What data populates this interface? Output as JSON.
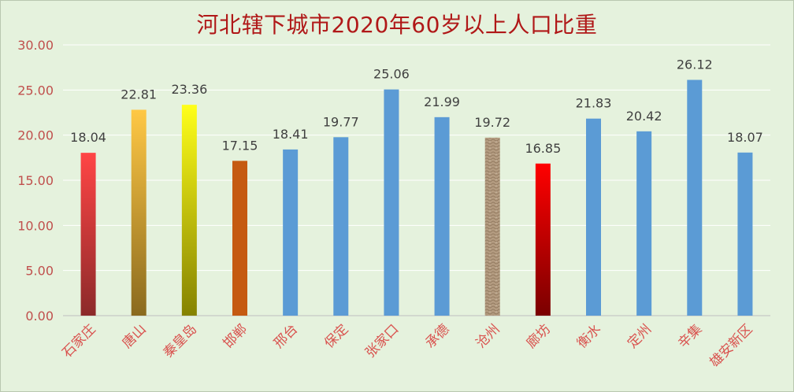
{
  "chart_data": {
    "type": "bar",
    "title": "河北辖下城市2020年60岁以上人口比重",
    "xlabel": "",
    "ylabel": "",
    "ylim": [
      0,
      30
    ],
    "yticks": [
      "0.00",
      "5.00",
      "10.00",
      "15.00",
      "20.00",
      "25.00",
      "30.00"
    ],
    "grid": "horizontal",
    "legend": "none",
    "categories": [
      "石家庄",
      "唐山",
      "秦皇岛",
      "邯郸",
      "邢台",
      "保定",
      "张家口",
      "承德",
      "沧州",
      "廊坊",
      "衡水",
      "定州",
      "辛集",
      "雄安新区"
    ],
    "values": [
      18.04,
      22.81,
      23.36,
      17.15,
      18.41,
      19.77,
      25.06,
      21.99,
      19.72,
      16.85,
      21.83,
      20.42,
      26.12,
      18.07
    ],
    "data_labels": [
      "18.04",
      "22.81",
      "23.36",
      "17.15",
      "18.41",
      "19.77",
      "25.06",
      "21.99",
      "19.72",
      "16.85",
      "21.83",
      "20.42",
      "26.12",
      "18.07"
    ],
    "colors": {
      "default_bar": "#5b9bd5",
      "title": "#b01818",
      "tick_label": "#c0504d",
      "category_label": "#d9534f",
      "data_label": "#404040",
      "plot_bg": "#e5f2dd",
      "gridline": "#ffffff"
    },
    "bar_fills": [
      {
        "top": "#ff4545",
        "bottom": "#8c2a2a"
      },
      {
        "top": "#ffc845",
        "bottom": "#8a6a1e"
      },
      {
        "top": "#ffff1a",
        "bottom": "#858200"
      },
      {
        "top": "#c55a11",
        "bottom": "#c55a11"
      },
      null,
      null,
      null,
      null,
      {
        "top": "#b59a7e",
        "bottom": "#a08a70",
        "texture": "stone"
      },
      {
        "top": "#ff0000",
        "bottom": "#7a0000"
      },
      null,
      null,
      null,
      null
    ]
  }
}
